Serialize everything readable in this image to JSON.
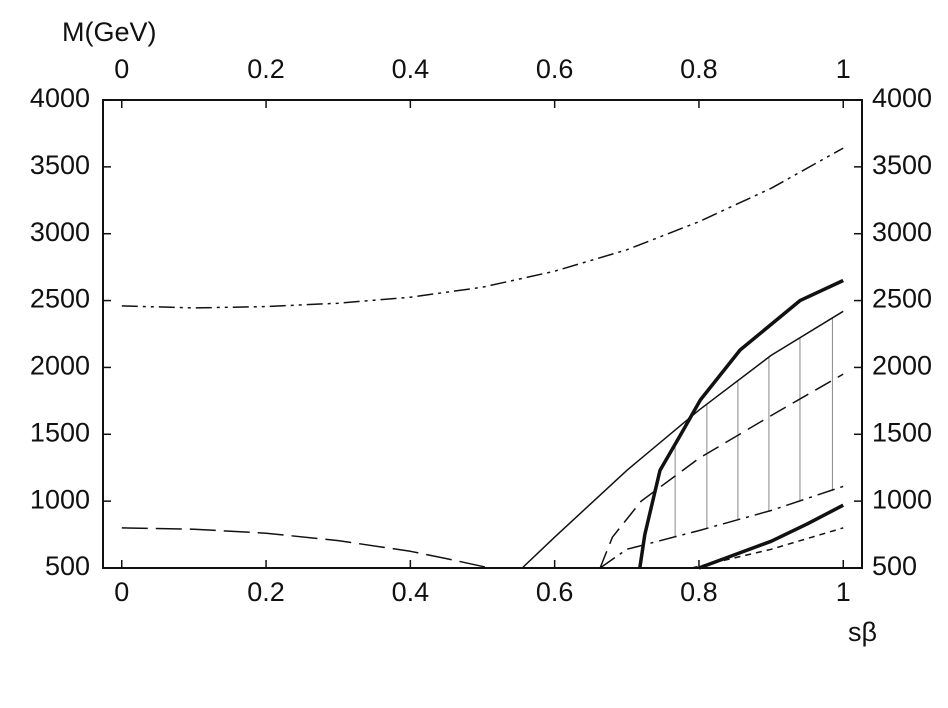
{
  "chart_data": {
    "type": "line",
    "y_label": "M(GeV)",
    "x_label": "sβ",
    "xlim": [
      -0.026,
      1.026
    ],
    "ylim": [
      500,
      4000
    ],
    "xticks": [
      0,
      0.2,
      0.4,
      0.6,
      0.8,
      1
    ],
    "yticks": [
      500,
      1000,
      1500,
      2000,
      2500,
      3000,
      3500,
      4000
    ],
    "top_axis": true,
    "right_axis": true,
    "series": [
      {
        "color": "#111111",
        "dash": "dash-dot-dot",
        "width": 1.5,
        "x": [
          0,
          0.1,
          0.2,
          0.3,
          0.4,
          0.5,
          0.6,
          0.7,
          0.8,
          0.9,
          1
        ],
        "values": [
          2460,
          2445,
          2455,
          2480,
          2525,
          2600,
          2720,
          2880,
          3090,
          3340,
          3640
        ]
      },
      {
        "color": "#111111",
        "dash": "long-dash",
        "width": 1.5,
        "x": [
          0,
          0.1,
          0.2,
          0.3,
          0.4,
          0.45,
          0.51
        ],
        "values": [
          800,
          790,
          760,
          705,
          625,
          570,
          500
        ]
      },
      {
        "color": "#111111",
        "dash": "solid",
        "width": 1.5,
        "x": [
          0.555,
          0.6,
          0.7,
          0.8,
          0.9,
          1
        ],
        "values": [
          500,
          730,
          1230,
          1680,
          2090,
          2420
        ]
      },
      {
        "color": "#111111",
        "dash": "solid",
        "width": 3.5,
        "x": [
          0.718,
          0.725,
          0.746,
          0.775,
          0.802,
          0.857,
          0.94,
          1
        ],
        "values": [
          500,
          750,
          1230,
          1500,
          1757,
          2130,
          2500,
          2650
        ]
      },
      {
        "color": "#111111",
        "dash": "dash",
        "width": 1.5,
        "x": [
          0.663,
          0.68,
          0.72,
          0.8,
          0.9,
          1
        ],
        "values": [
          500,
          730,
          1000,
          1320,
          1640,
          1950
        ]
      },
      {
        "color": "#111111",
        "dash": "dash-dot",
        "width": 1.5,
        "x": [
          0.663,
          0.7,
          0.8,
          0.9,
          1
        ],
        "values": [
          500,
          640,
          780,
          930,
          1110
        ]
      },
      {
        "color": "#111111",
        "dash": "solid",
        "width": 3.5,
        "x": [
          0.8,
          0.85,
          0.9,
          0.95,
          1
        ],
        "values": [
          500,
          600,
          700,
          830,
          970
        ]
      },
      {
        "color": "#111111",
        "dash": "short-dash",
        "width": 1.5,
        "x": [
          0.79,
          0.9,
          1
        ],
        "values": [
          500,
          640,
          800
        ]
      }
    ],
    "hatch_x": [
      0.767,
      0.811,
      0.854,
      0.897,
      0.94,
      0.985
    ],
    "hatch_color": "#888888"
  }
}
